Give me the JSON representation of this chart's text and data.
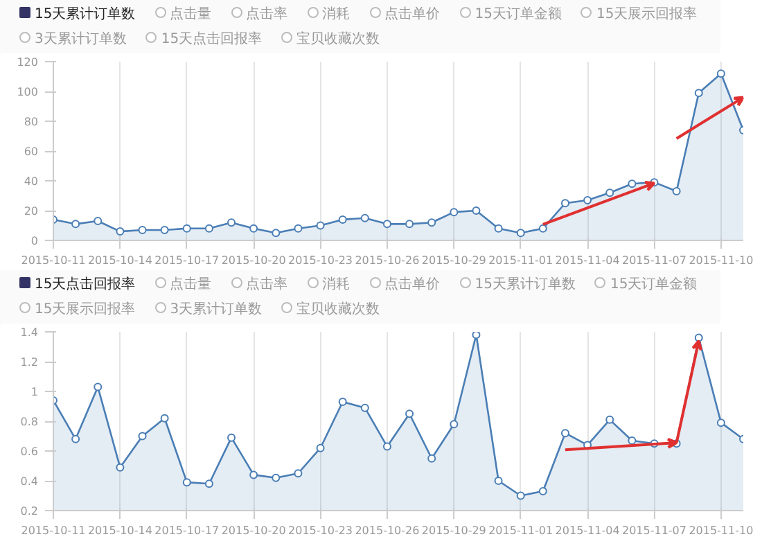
{
  "chart_data": [
    {
      "type": "area",
      "marker": "circle",
      "grid": "x",
      "legend": "top",
      "annotations": [
        "点击量",
        "点击率",
        "消耗",
        "点击单价",
        "15天订单金额",
        "15天展示回报率",
        "3天累计订单数",
        "15天点击回报率",
        "宝贝收藏次数"
      ],
      "x": [
        "2015-10-11",
        "2015-10-12",
        "2015-10-13",
        "2015-10-14",
        "2015-10-15",
        "2015-10-16",
        "2015-10-17",
        "2015-10-18",
        "2015-10-19",
        "2015-10-20",
        "2015-10-21",
        "2015-10-22",
        "2015-10-23",
        "2015-10-24",
        "2015-10-25",
        "2015-10-26",
        "2015-10-27",
        "2015-10-28",
        "2015-10-29",
        "2015-10-30",
        "2015-10-31",
        "2015-11-01",
        "2015-11-02",
        "2015-11-03",
        "2015-11-04",
        "2015-11-05",
        "2015-11-06",
        "2015-11-07",
        "2015-11-08",
        "2015-11-09",
        "2015-11-10",
        "2015-11-11"
      ],
      "series": [
        {
          "name": "15天累计订单数",
          "color": "#4a7eb5",
          "values": [
            14,
            11,
            13,
            6,
            7,
            7,
            8,
            8,
            12,
            8,
            5,
            8,
            10,
            14,
            15,
            11,
            11,
            12,
            19,
            20,
            8,
            5,
            8,
            25,
            27,
            32,
            38,
            39,
            33,
            99,
            112,
            74
          ]
        }
      ],
      "xlim": [
        "2015-10-11",
        "2015-11-11"
      ],
      "xticks": [
        "2015-10-11",
        "2015-10-14",
        "2015-10-17",
        "2015-10-20",
        "2015-10-23",
        "2015-10-26",
        "2015-10-29",
        "2015-11-01",
        "2015-11-04",
        "2015-11-07",
        "2015-11-10"
      ],
      "ylim": [
        0,
        120
      ],
      "yticks": [
        0,
        20,
        40,
        60,
        80,
        100,
        120
      ]
    },
    {
      "type": "area",
      "marker": "circle",
      "grid": "x",
      "legend": "top",
      "annotations": [
        "点击量",
        "点击率",
        "消耗",
        "点击单价",
        "15天累计订单数",
        "15天订单金额",
        "15天展示回报率",
        "3天累计订单数",
        "宝贝收藏次数"
      ],
      "x": [
        "2015-10-11",
        "2015-10-12",
        "2015-10-13",
        "2015-10-14",
        "2015-10-15",
        "2015-10-16",
        "2015-10-17",
        "2015-10-18",
        "2015-10-19",
        "2015-10-20",
        "2015-10-21",
        "2015-10-22",
        "2015-10-23",
        "2015-10-24",
        "2015-10-25",
        "2015-10-26",
        "2015-10-27",
        "2015-10-28",
        "2015-10-29",
        "2015-10-30",
        "2015-10-31",
        "2015-11-01",
        "2015-11-02",
        "2015-11-03",
        "2015-11-04",
        "2015-11-05",
        "2015-11-06",
        "2015-11-07",
        "2015-11-08",
        "2015-11-09",
        "2015-11-10",
        "2015-11-11"
      ],
      "series": [
        {
          "name": "15天点击回报率",
          "color": "#4a7eb5",
          "values": [
            0.94,
            0.68,
            1.03,
            0.49,
            0.7,
            0.82,
            0.39,
            0.38,
            0.69,
            0.44,
            0.42,
            0.45,
            0.62,
            0.93,
            0.89,
            0.63,
            0.85,
            0.55,
            0.78,
            1.38,
            0.4,
            0.3,
            0.33,
            0.72,
            0.64,
            0.81,
            0.67,
            0.65,
            0.65,
            1.36,
            0.79,
            0.68
          ]
        }
      ],
      "xlim": [
        "2015-10-11",
        "2015-11-11"
      ],
      "xticks": [
        "2015-10-11",
        "2015-10-14",
        "2015-10-17",
        "2015-10-20",
        "2015-10-23",
        "2015-10-26",
        "2015-10-29",
        "2015-11-01",
        "2015-11-04",
        "2015-11-07",
        "2015-11-10"
      ],
      "ylim": [
        0.2,
        1.4
      ],
      "yticks": [
        0.2,
        0.4,
        0.6,
        0.8,
        1,
        1.2,
        1.4
      ]
    }
  ]
}
